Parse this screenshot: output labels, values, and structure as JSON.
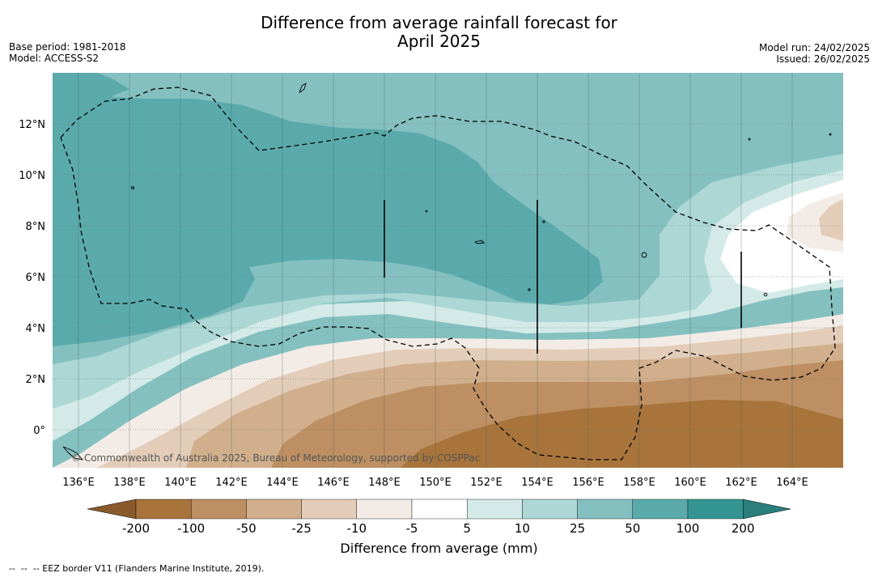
{
  "header": {
    "title_line1": "Difference from average rainfall forecast for",
    "title_line2": "April 2025",
    "base_period": "Base period: 1981-2018",
    "model": "Model: ACCESS-S2",
    "model_run": "Model run: 24/02/2025",
    "issued": "Issued: 26/02/2025"
  },
  "map": {
    "lat_labels": [
      "12°N",
      "10°N",
      "8°N",
      "6°N",
      "4°N",
      "2°N",
      "0°"
    ],
    "lon_labels": [
      "136°E",
      "138°E",
      "140°E",
      "142°E",
      "144°E",
      "146°E",
      "148°E",
      "150°E",
      "152°E",
      "154°E",
      "156°E",
      "158°E",
      "160°E",
      "162°E",
      "164°E"
    ],
    "attribution": "© Commonwealth of Australia 2025, Bureau of Meteorology, supported by COSPPac",
    "colors": {
      "n200": "#a8743b",
      "n100": "#bd8f62",
      "n50": "#d1af8c",
      "n25": "#e3cdb9",
      "n10": "#f3ece6",
      "zero": "#ffffff",
      "p10": "#d3eae8",
      "p25": "#acd7d5",
      "p50": "#84c0bf",
      "p100": "#5aaaab",
      "p200": "#359592"
    }
  },
  "colorbar": {
    "tick_labels": [
      "-200",
      "-100",
      "-50",
      "-25",
      "-10",
      "-5",
      "5",
      "10",
      "25",
      "50",
      "100",
      "200"
    ],
    "colors": [
      "#a8743b",
      "#bd8f62",
      "#d1af8c",
      "#e3cdb9",
      "#f3ece6",
      "#ffffff",
      "#d3eae8",
      "#acd7d5",
      "#84c0bf",
      "#5aaaab",
      "#359592"
    ],
    "end_low": "#8a5a2c",
    "end_high": "#2a7f7c",
    "title": "Difference from average (mm)"
  },
  "footnote": "--  --  -- EEZ border V11 (Flanders Marine Institute, 2019)."
}
